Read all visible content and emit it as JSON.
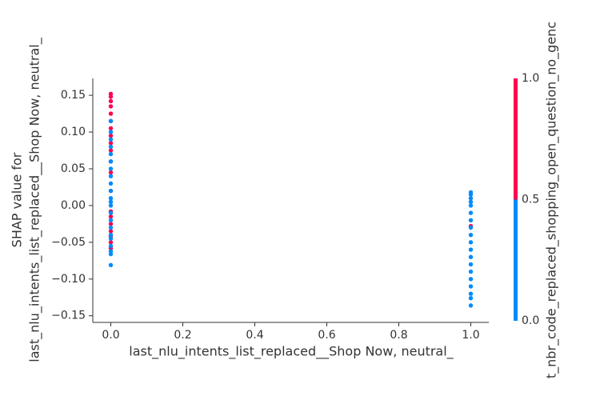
{
  "chart_data": {
    "type": "scatter",
    "xlabel": "last_nlu_intents_list_replaced__Shop Now, neutral_",
    "ylabel": [
      "SHAP value for",
      "last_nlu_intents_list_replaced__Shop Now, neutral_"
    ],
    "x": [
      0,
      0,
      0,
      0,
      0,
      0,
      0,
      0,
      0,
      0,
      0,
      0,
      0,
      0,
      0,
      0,
      0,
      0,
      0,
      0,
      0,
      0,
      0,
      0,
      0,
      0,
      0,
      0,
      0,
      0,
      0,
      0,
      0,
      0,
      0,
      0,
      0,
      0,
      0,
      0,
      0,
      0,
      1,
      1,
      1,
      1,
      1,
      1,
      1,
      1,
      1,
      1,
      1,
      1,
      1,
      1,
      1,
      1,
      1,
      1,
      1,
      1
    ],
    "y": [
      -0.058,
      -0.05,
      -0.042,
      -0.035,
      -0.025,
      -0.015,
      -0.008,
      0.02,
      0.045,
      0.06,
      0.075,
      0.085,
      0.095,
      0.105,
      0.115,
      0.125,
      0.135,
      0.142,
      0.148,
      0.152,
      -0.081,
      -0.066,
      -0.062,
      -0.055,
      -0.045,
      -0.04,
      -0.03,
      -0.02,
      -0.01,
      0,
      0.005,
      0.01,
      0.02,
      0.03,
      0.04,
      0.05,
      0.06,
      0.07,
      0.08,
      0.09,
      0.1,
      0.115,
      -0.028,
      -0.136,
      -0.126,
      -0.12,
      -0.11,
      -0.1,
      -0.09,
      -0.08,
      -0.07,
      -0.06,
      -0.05,
      -0.04,
      -0.03,
      -0.02,
      -0.01,
      0,
      0.005,
      0.01,
      0.015,
      0.018
    ],
    "c": [
      1,
      1,
      1,
      1,
      1,
      1,
      1,
      1,
      1,
      1,
      1,
      1,
      1,
      1,
      1,
      1,
      1,
      1,
      1,
      1,
      0,
      0,
      0,
      0,
      0,
      0,
      0,
      0,
      0,
      0,
      0,
      0,
      0,
      0,
      0,
      0,
      0,
      0,
      0,
      0,
      0,
      0,
      1,
      0,
      0,
      0,
      0,
      0,
      0,
      0,
      0,
      0,
      0,
      0,
      0,
      0,
      0,
      0,
      0,
      0,
      0,
      0
    ],
    "xlim": [
      -0.05,
      1.05
    ],
    "ylim": [
      -0.159,
      0.173
    ],
    "xticks": [
      {
        "value": 0,
        "label": "0.0"
      },
      {
        "value": 0.2,
        "label": "0.2"
      },
      {
        "value": 0.4,
        "label": "0.4"
      },
      {
        "value": 0.6,
        "label": "0.6"
      },
      {
        "value": 0.8,
        "label": "0.8"
      },
      {
        "value": 1,
        "label": "1.0"
      }
    ],
    "yticks": [
      {
        "value": -0.15,
        "label": "−0.15"
      },
      {
        "value": -0.1,
        "label": "−0.10"
      },
      {
        "value": -0.05,
        "label": "−0.05"
      },
      {
        "value": 0,
        "label": "0.00"
      },
      {
        "value": 0.05,
        "label": "0.05"
      },
      {
        "value": 0.1,
        "label": "0.10"
      },
      {
        "value": 0.15,
        "label": "0.15"
      }
    ],
    "colorbar": {
      "label": "t_nbr_code_replaced_shopping_open_question_no_genc",
      "clim": [
        0,
        1
      ],
      "colors": [
        "#008bfb",
        "#ff0052"
      ],
      "ticks": [
        {
          "value": 0,
          "label": "0.0"
        },
        {
          "value": 0.5,
          "label": "0.5"
        },
        {
          "value": 1,
          "label": "1.0"
        }
      ]
    }
  }
}
